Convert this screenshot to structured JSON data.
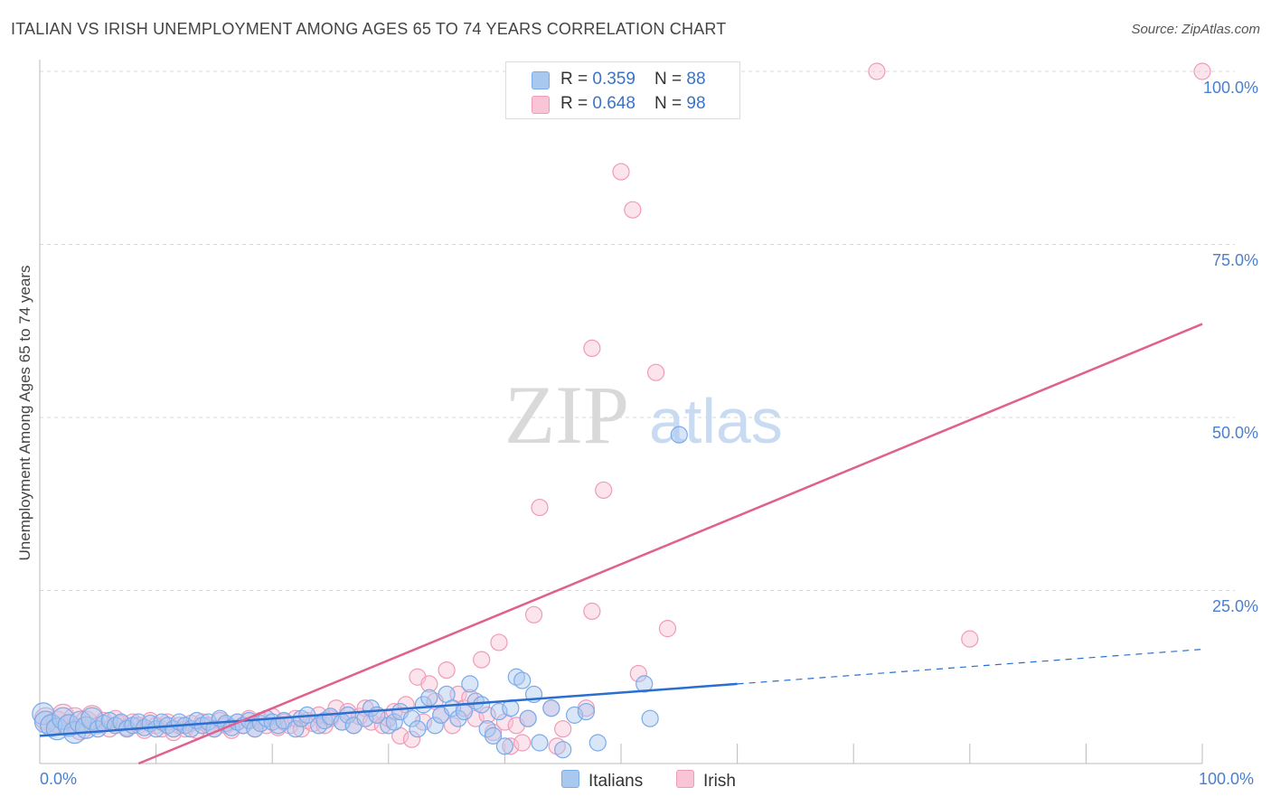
{
  "chart_data": {
    "type": "scatter",
    "title": "ITALIAN VS IRISH UNEMPLOYMENT AMONG AGES 65 TO 74 YEARS CORRELATION CHART",
    "source": "Source: ZipAtlas.com",
    "xlabel": "",
    "ylabel": "Unemployment Among Ages 65 to 74 years",
    "xlim": [
      0,
      100
    ],
    "ylim": [
      0,
      100
    ],
    "x_tick_labels": [
      "0.0%",
      "100.0%"
    ],
    "y_tick_labels": [
      "25.0%",
      "50.0%",
      "75.0%",
      "100.0%"
    ],
    "y_ticks": [
      25,
      50,
      75,
      100
    ],
    "watermark": {
      "zip": "ZIP",
      "atlas": "atlas"
    },
    "legend": {
      "rows": [
        {
          "r_label": "R = ",
          "r_value": "0.359",
          "n_label": "N = ",
          "n_value": "88"
        },
        {
          "r_label": "R = ",
          "r_value": "0.648",
          "n_label": "N = ",
          "n_value": "98"
        }
      ]
    },
    "series": [
      {
        "name": "Italians",
        "color": "#7aaae8",
        "fill": "#a9c8f0",
        "line_color": "#2a6fd0",
        "trend": {
          "x0": 0,
          "y0": 4.0,
          "x1": 60,
          "y1": 11.5,
          "dash_to_x": 100,
          "dash_to_y": 16.5
        },
        "points": [
          [
            0.3,
            7.2
          ],
          [
            0.5,
            6.0
          ],
          [
            1,
            5.5
          ],
          [
            1.5,
            5.0
          ],
          [
            2,
            6.5
          ],
          [
            2.5,
            5.5
          ],
          [
            3,
            4.5
          ],
          [
            3.5,
            6.0
          ],
          [
            4,
            5.2
          ],
          [
            4.5,
            6.5
          ],
          [
            5,
            5.0
          ],
          [
            5.5,
            5.8
          ],
          [
            6,
            6.2
          ],
          [
            6.5,
            5.5
          ],
          [
            7,
            6.0
          ],
          [
            7.5,
            5.0
          ],
          [
            8,
            5.5
          ],
          [
            8.5,
            6.0
          ],
          [
            9,
            5.2
          ],
          [
            9.5,
            5.8
          ],
          [
            10,
            5.0
          ],
          [
            10.5,
            6.0
          ],
          [
            11,
            5.5
          ],
          [
            11.5,
            5.0
          ],
          [
            12,
            6.0
          ],
          [
            12.5,
            5.5
          ],
          [
            13,
            5.0
          ],
          [
            13.5,
            6.2
          ],
          [
            14,
            5.5
          ],
          [
            14.5,
            6.0
          ],
          [
            15,
            5.0
          ],
          [
            15.5,
            6.5
          ],
          [
            16,
            5.8
          ],
          [
            16.5,
            5.2
          ],
          [
            17,
            6.0
          ],
          [
            17.5,
            5.5
          ],
          [
            18,
            6.2
          ],
          [
            18.5,
            5.0
          ],
          [
            19,
            5.8
          ],
          [
            19.5,
            6.5
          ],
          [
            20,
            6.0
          ],
          [
            20.5,
            5.5
          ],
          [
            21,
            6.2
          ],
          [
            22,
            5.0
          ],
          [
            22.5,
            6.5
          ],
          [
            23,
            7.0
          ],
          [
            24,
            5.5
          ],
          [
            24.5,
            6.2
          ],
          [
            25,
            6.8
          ],
          [
            26,
            6.0
          ],
          [
            26.5,
            7.0
          ],
          [
            27,
            5.5
          ],
          [
            28,
            6.5
          ],
          [
            28.5,
            8.0
          ],
          [
            29,
            7.0
          ],
          [
            30,
            5.5
          ],
          [
            30.5,
            6.0
          ],
          [
            31,
            7.5
          ],
          [
            32,
            6.5
          ],
          [
            32.5,
            5.0
          ],
          [
            33,
            8.5
          ],
          [
            33.5,
            9.5
          ],
          [
            34,
            5.5
          ],
          [
            34.5,
            7.0
          ],
          [
            35,
            10.0
          ],
          [
            35.5,
            8.0
          ],
          [
            36,
            6.5
          ],
          [
            36.5,
            7.5
          ],
          [
            37,
            11.5
          ],
          [
            37.5,
            9.0
          ],
          [
            38,
            8.5
          ],
          [
            38.5,
            5.0
          ],
          [
            39,
            4.0
          ],
          [
            39.5,
            7.5
          ],
          [
            40,
            2.5
          ],
          [
            40.5,
            8.0
          ],
          [
            41,
            12.5
          ],
          [
            41.5,
            12.0
          ],
          [
            42,
            6.5
          ],
          [
            42.5,
            10.0
          ],
          [
            43,
            3.0
          ],
          [
            44,
            8.0
          ],
          [
            45,
            2.0
          ],
          [
            46,
            7.0
          ],
          [
            47,
            7.5
          ],
          [
            48,
            3.0
          ],
          [
            52,
            11.5
          ],
          [
            52.5,
            6.5
          ],
          [
            55,
            47.5
          ]
        ]
      },
      {
        "name": "Irish",
        "color": "#f09ab8",
        "fill": "#f8c4d6",
        "line_color": "#e0608f",
        "trend": {
          "x0": 8.5,
          "y0": 0,
          "x1": 100,
          "y1": 63.5
        },
        "points": [
          [
            0.5,
            6.5
          ],
          [
            1,
            5.5
          ],
          [
            1.5,
            6.0
          ],
          [
            2,
            7.0
          ],
          [
            2.5,
            5.5
          ],
          [
            3,
            6.5
          ],
          [
            3.5,
            5.0
          ],
          [
            4,
            6.0
          ],
          [
            4.5,
            6.8
          ],
          [
            5,
            5.5
          ],
          [
            5.5,
            6.2
          ],
          [
            6,
            5.0
          ],
          [
            6.5,
            6.5
          ],
          [
            7,
            5.8
          ],
          [
            7.5,
            5.2
          ],
          [
            8,
            6.0
          ],
          [
            8.5,
            5.5
          ],
          [
            9,
            4.8
          ],
          [
            9.5,
            6.2
          ],
          [
            10,
            5.5
          ],
          [
            10.5,
            5.0
          ],
          [
            11,
            6.0
          ],
          [
            11.5,
            4.5
          ],
          [
            12,
            5.5
          ],
          [
            12.5,
            5.0
          ],
          [
            13,
            5.8
          ],
          [
            13.5,
            4.8
          ],
          [
            14,
            6.0
          ],
          [
            14.5,
            5.5
          ],
          [
            15,
            5.0
          ],
          [
            15.5,
            6.2
          ],
          [
            16,
            5.5
          ],
          [
            16.5,
            4.8
          ],
          [
            17,
            6.0
          ],
          [
            17.5,
            5.5
          ],
          [
            18,
            6.5
          ],
          [
            18.5,
            5.0
          ],
          [
            19,
            6.2
          ],
          [
            19.5,
            5.5
          ],
          [
            20,
            6.8
          ],
          [
            20.5,
            5.2
          ],
          [
            21,
            6.0
          ],
          [
            21.5,
            5.5
          ],
          [
            22,
            6.5
          ],
          [
            22.5,
            5.0
          ],
          [
            23,
            6.2
          ],
          [
            23.5,
            5.8
          ],
          [
            24,
            7.0
          ],
          [
            24.5,
            5.5
          ],
          [
            25,
            6.5
          ],
          [
            25.5,
            8.0
          ],
          [
            26,
            6.0
          ],
          [
            26.5,
            7.5
          ],
          [
            27,
            5.5
          ],
          [
            27.5,
            6.8
          ],
          [
            28,
            8.0
          ],
          [
            28.5,
            6.0
          ],
          [
            29,
            7.0
          ],
          [
            29.5,
            5.5
          ],
          [
            30,
            6.5
          ],
          [
            30.5,
            7.5
          ],
          [
            31,
            4.0
          ],
          [
            31.5,
            8.5
          ],
          [
            32,
            3.5
          ],
          [
            32.5,
            12.5
          ],
          [
            33,
            6.0
          ],
          [
            33.5,
            11.5
          ],
          [
            34,
            9.0
          ],
          [
            34.5,
            7.0
          ],
          [
            35,
            13.5
          ],
          [
            35.5,
            5.5
          ],
          [
            36,
            10.0
          ],
          [
            36.5,
            8.0
          ],
          [
            37,
            9.5
          ],
          [
            37.5,
            6.5
          ],
          [
            38,
            15.0
          ],
          [
            38.5,
            7.0
          ],
          [
            39,
            4.5
          ],
          [
            39.5,
            17.5
          ],
          [
            40,
            6.0
          ],
          [
            40.5,
            2.5
          ],
          [
            41,
            5.5
          ],
          [
            41.5,
            3.0
          ],
          [
            42,
            6.5
          ],
          [
            42.5,
            21.5
          ],
          [
            43,
            37.0
          ],
          [
            44,
            8.0
          ],
          [
            44.5,
            2.5
          ],
          [
            45,
            5.0
          ],
          [
            47,
            8.0
          ],
          [
            47.5,
            60.0
          ],
          [
            47.5,
            22.0
          ],
          [
            48.5,
            39.5
          ],
          [
            50,
            85.5
          ],
          [
            51,
            80.0
          ],
          [
            51.5,
            13.0
          ],
          [
            53,
            56.5
          ],
          [
            54,
            19.5
          ],
          [
            72,
            100.0
          ],
          [
            80,
            18.0
          ],
          [
            100,
            100.0
          ]
        ]
      }
    ]
  }
}
